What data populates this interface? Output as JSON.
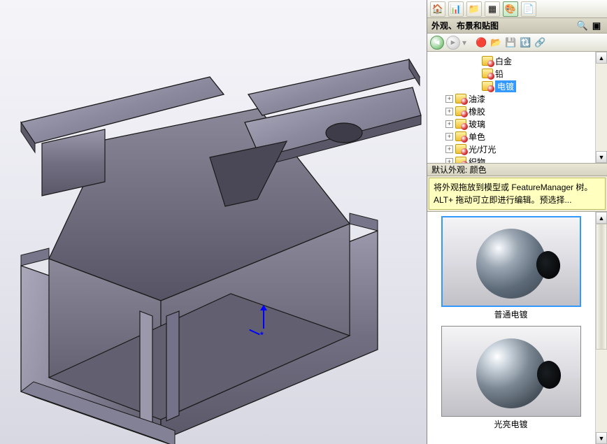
{
  "panel": {
    "title": "外观、布景和贴图",
    "toolbar_icons": [
      "home-icon",
      "chart-icon",
      "folder-icon",
      "grid-icon",
      "palette-icon",
      "sheet-icon"
    ],
    "title_icons": [
      "help-icon",
      "pin-icon"
    ],
    "nav": {
      "back": "←",
      "fwd": "→",
      "sep": "·"
    },
    "nav_icons": [
      "new-appearance-icon",
      "open-folder-icon",
      "save-icon",
      "refresh-icon",
      "link-icon"
    ]
  },
  "tree": {
    "items": [
      {
        "indent": 3,
        "exp": null,
        "icon": "ball",
        "label": "白金",
        "selected": false
      },
      {
        "indent": 3,
        "exp": null,
        "icon": "ball",
        "label": "铅",
        "selected": false
      },
      {
        "indent": 3,
        "exp": null,
        "icon": "ball",
        "label": "电镀",
        "selected": true
      },
      {
        "indent": 1,
        "exp": "+",
        "icon": "ball",
        "label": "油漆",
        "selected": false
      },
      {
        "indent": 1,
        "exp": "+",
        "icon": "ball",
        "label": "橡胶",
        "selected": false
      },
      {
        "indent": 1,
        "exp": "+",
        "icon": "ball",
        "label": "玻璃",
        "selected": false
      },
      {
        "indent": 1,
        "exp": "+",
        "icon": "ball",
        "label": "单色",
        "selected": false
      },
      {
        "indent": 1,
        "exp": "+",
        "icon": "ball",
        "label": "光/灯光",
        "selected": false
      },
      {
        "indent": 1,
        "exp": "+",
        "icon": "ball",
        "label": "织物",
        "selected": false
      }
    ]
  },
  "default_row": "默认外观: 颜色",
  "hint": "将外观拖放到模型或 FeatureManager 树。ALT+ 拖动可立即进行编辑。预选择...",
  "swatches": [
    {
      "label": "普通电镀",
      "shiny": false,
      "selected": true
    },
    {
      "label": "光亮电镀",
      "shiny": true,
      "selected": false
    }
  ],
  "model": {
    "fill_base": "#8b899d",
    "fill_mid": "#9c9aae",
    "fill_lite": "#b0aec0",
    "fill_dark": "#6a6878",
    "edge": "#1a1a1a",
    "hole_edge": "#1a1a1a"
  },
  "viewport": {
    "bg_top": "#f5f5f9",
    "bg_bot": "#d8d8e2"
  }
}
